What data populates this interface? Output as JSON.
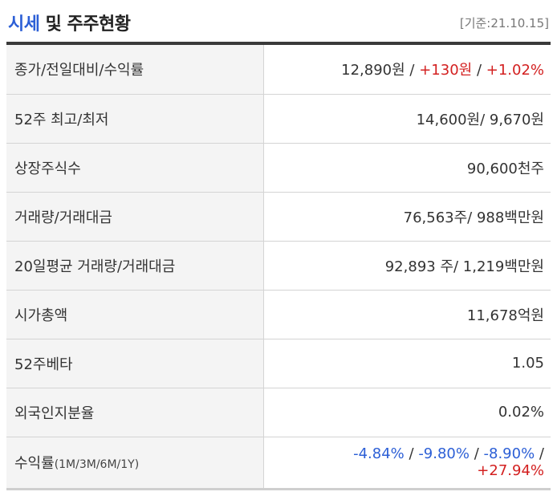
{
  "header": {
    "title_accent": "시세",
    "title_rest": " 및 주주현황",
    "date": "[기준:21.10.15]"
  },
  "rows": {
    "price": {
      "label": "종가/전일대비/수익률",
      "close": "12,890원",
      "sep1": " / ",
      "change": "+130원",
      "sep2": " / ",
      "rate": "+1.02%"
    },
    "high_low": {
      "label": "52주 최고/최저",
      "value": "14,600원/ 9,670원"
    },
    "shares": {
      "label": "상장주식수",
      "value": "90,600천주"
    },
    "volume": {
      "label": "거래량/거래대금",
      "value": "76,563주/ 988백만원"
    },
    "avg_volume": {
      "label": "20일평균 거래량/거래대금",
      "value": "92,893 주/ 1,219백만원"
    },
    "market_cap": {
      "label": "시가총액",
      "value": "11,678억원"
    },
    "beta": {
      "label": "52주베타",
      "value": "1.05"
    },
    "foreign": {
      "label": "외국인지분율",
      "value": "0.02%"
    },
    "returns": {
      "label_main": "수익률",
      "label_sub": "(1M/3M/6M/1Y)",
      "r1m": "-4.84%",
      "r3m": "-9.80%",
      "r6m": "-8.90%",
      "r1y": "+27.94%",
      "sep": " / "
    }
  },
  "colors": {
    "accent_blue": "#2c5fd6",
    "positive_red": "#d32020",
    "label_bg": "#f4f4f4"
  }
}
